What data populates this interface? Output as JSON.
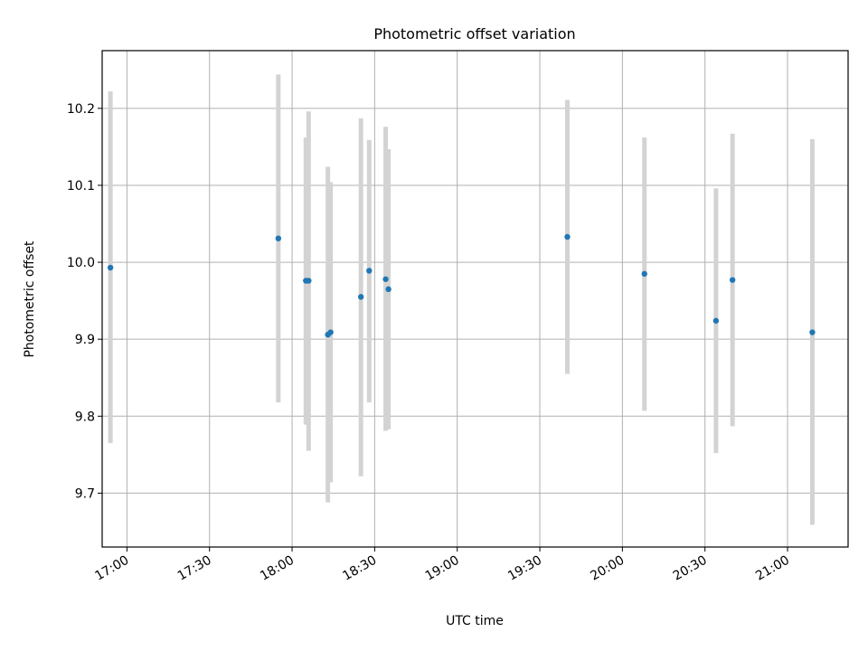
{
  "chart_data": {
    "type": "scatter",
    "title": "Photometric offset variation",
    "xlabel": "UTC time",
    "ylabel": "Photometric offset",
    "x_ticks": [
      "17:00",
      "17:30",
      "18:00",
      "18:30",
      "19:00",
      "19:30",
      "20:00",
      "20:30",
      "21:00"
    ],
    "y_ticks": [
      "9.7",
      "9.8",
      "9.9",
      "10.0",
      "10.1",
      "10.2"
    ],
    "xlim": [
      "16:51",
      "21:22"
    ],
    "ylim": [
      9.63,
      10.275
    ],
    "grid": true,
    "marker_color": "#1f77b4",
    "errorbar_color": "#d3d3d3",
    "series": [
      {
        "points": [
          {
            "x": "16:54",
            "y": 9.993,
            "yerr_low": 9.765,
            "yerr_high": 10.222
          },
          {
            "x": "17:55",
            "y": 10.031,
            "yerr_low": 9.818,
            "yerr_high": 10.244
          },
          {
            "x": "18:05",
            "y": 9.976,
            "yerr_low": 9.789,
            "yerr_high": 10.162
          },
          {
            "x": "18:06",
            "y": 9.976,
            "yerr_low": 9.755,
            "yerr_high": 10.196
          },
          {
            "x": "18:13",
            "y": 9.906,
            "yerr_low": 9.688,
            "yerr_high": 10.124
          },
          {
            "x": "18:14",
            "y": 9.909,
            "yerr_low": 9.714,
            "yerr_high": 10.104
          },
          {
            "x": "18:25",
            "y": 9.955,
            "yerr_low": 9.722,
            "yerr_high": 10.187
          },
          {
            "x": "18:28",
            "y": 9.989,
            "yerr_low": 9.818,
            "yerr_high": 10.159
          },
          {
            "x": "18:34",
            "y": 9.978,
            "yerr_low": 9.781,
            "yerr_high": 10.176
          },
          {
            "x": "18:35",
            "y": 9.965,
            "yerr_low": 9.783,
            "yerr_high": 10.147
          },
          {
            "x": "19:40",
            "y": 10.033,
            "yerr_low": 9.855,
            "yerr_high": 10.211
          },
          {
            "x": "20:08",
            "y": 9.985,
            "yerr_low": 9.807,
            "yerr_high": 10.162
          },
          {
            "x": "20:34",
            "y": 9.924,
            "yerr_low": 9.752,
            "yerr_high": 10.096
          },
          {
            "x": "20:40",
            "y": 9.977,
            "yerr_low": 9.787,
            "yerr_high": 10.167
          },
          {
            "x": "21:09",
            "y": 9.909,
            "yerr_low": 9.659,
            "yerr_high": 10.16
          }
        ]
      }
    ]
  }
}
